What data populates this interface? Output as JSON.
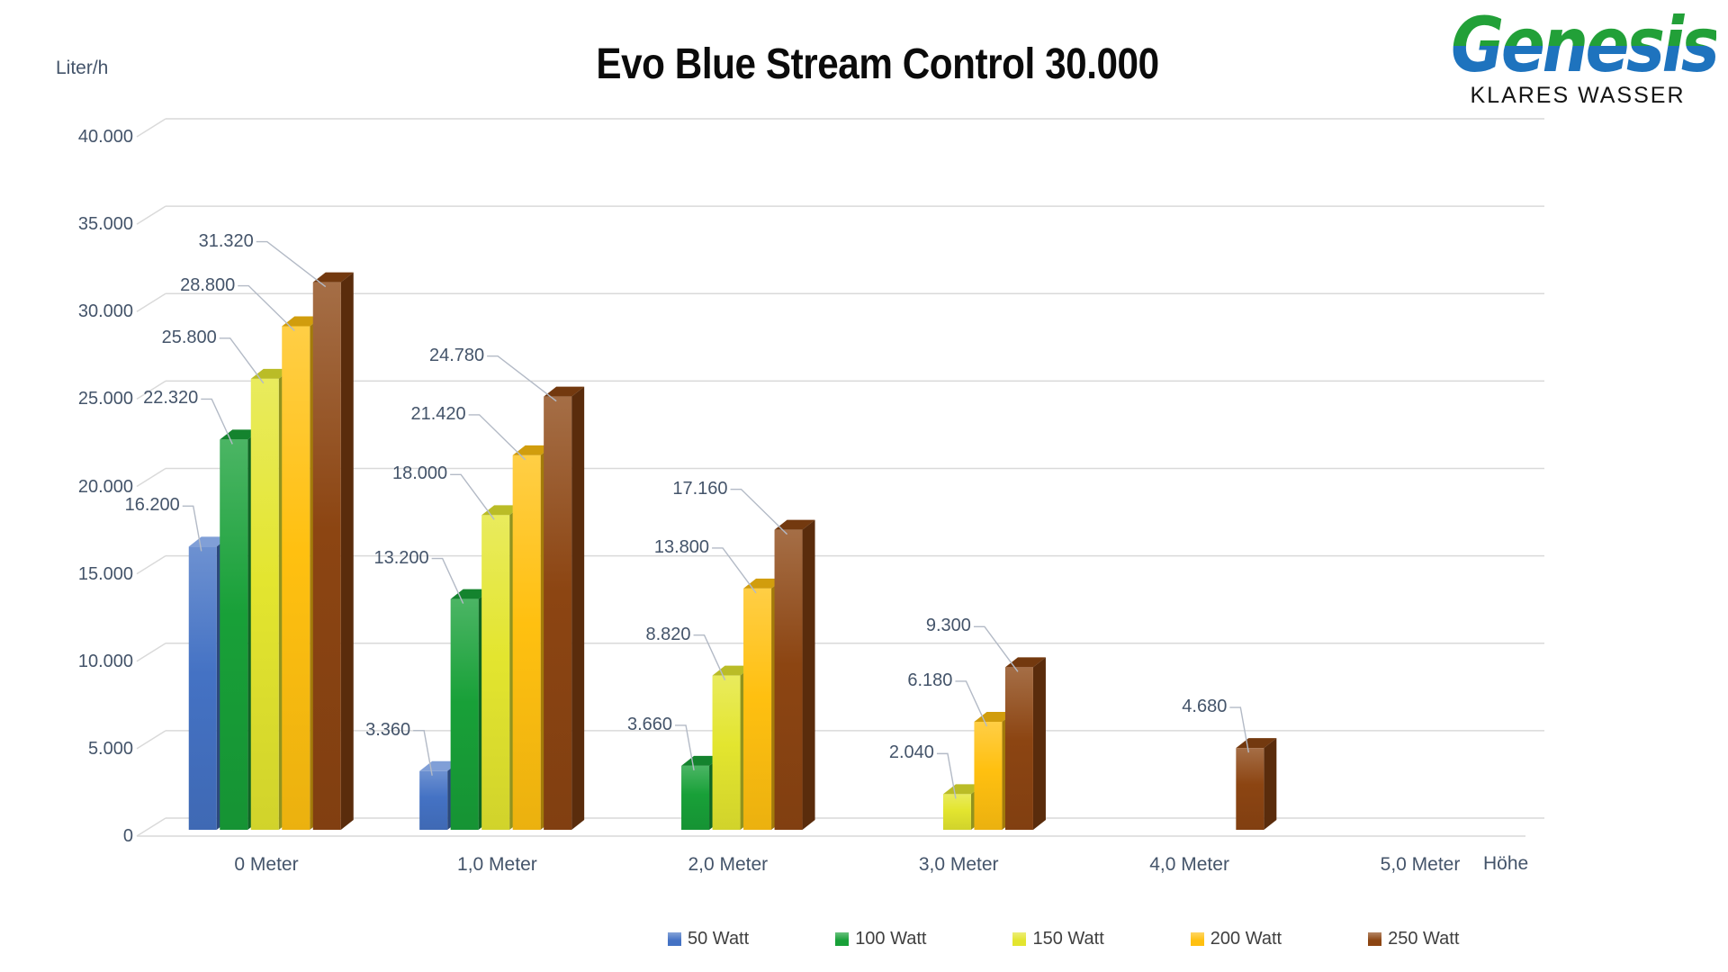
{
  "title": "Evo Blue Stream Control 30.000",
  "logo": {
    "brand": "Genesis",
    "tagline": "KLARES WASSER"
  },
  "y_axis_title": "Liter/h",
  "x_axis_title": "Höhe",
  "chart_data": {
    "type": "bar",
    "subtype": "3d-clustered-column",
    "title": "Evo Blue Stream Control 30.000",
    "xlabel": "Höhe",
    "ylabel": "Liter/h",
    "categories": [
      "0 Meter",
      "1,0 Meter",
      "2,0 Meter",
      "3,0 Meter",
      "4,0 Meter",
      "5,0 Meter"
    ],
    "series": [
      {
        "name": "50 Watt",
        "color": "#4472C4",
        "values": [
          16200,
          3360,
          0,
          0,
          0,
          0
        ]
      },
      {
        "name": "100 Watt",
        "color": "#18A038",
        "values": [
          22320,
          13200,
          3660,
          0,
          0,
          0
        ]
      },
      {
        "name": "150 Watt",
        "color": "#E3E52F",
        "values": [
          25800,
          18000,
          8820,
          2040,
          0,
          0
        ]
      },
      {
        "name": "200 Watt",
        "color": "#FFC010",
        "values": [
          28800,
          21420,
          13800,
          6180,
          0,
          0
        ]
      },
      {
        "name": "250 Watt",
        "color": "#8C4512",
        "values": [
          31320,
          24780,
          17160,
          9300,
          4680,
          0
        ]
      }
    ],
    "ylim": [
      0,
      40000
    ],
    "ytick_step": 5000,
    "y_tick_labels": [
      "0",
      "5.000",
      "10.000",
      "15.000",
      "20.000",
      "25.000",
      "30.000",
      "35.000",
      "40.000"
    ],
    "grid": true,
    "legend_position": "bottom",
    "data_labels": true,
    "number_format": "thousands-dot",
    "gridline_color": "#D9D9D9",
    "leader_line_color": "#B3BAC6",
    "label_color": "#44546A"
  }
}
